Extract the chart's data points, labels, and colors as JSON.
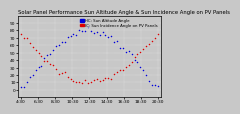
{
  "title": "Solar Panel Performance Sun Altitude Angle & Sun Incidence Angle on PV Panels",
  "legend_blue": "HC: Sun Altitude Angle",
  "legend_red": "IC: Sun Incidence Angle on PV Panels",
  "ylim": [
    -10,
    100
  ],
  "yticks": [
    0,
    10,
    20,
    30,
    40,
    50,
    60,
    70,
    80,
    90
  ],
  "blue_color": "#0000dd",
  "red_color": "#dd0000",
  "background_color": "#c8c8c8",
  "title_fontsize": 3.8,
  "tick_fontsize": 3.2,
  "legend_fontsize": 2.8,
  "xtick_labels": [
    "4:30",
    "6:30",
    "8:30",
    "10:30",
    "12:30",
    "14:30",
    "16:30",
    "18:30",
    "20:30"
  ],
  "n_points": 48,
  "peak_altitude": 80,
  "min_incidence": 10,
  "max_incidence": 75
}
